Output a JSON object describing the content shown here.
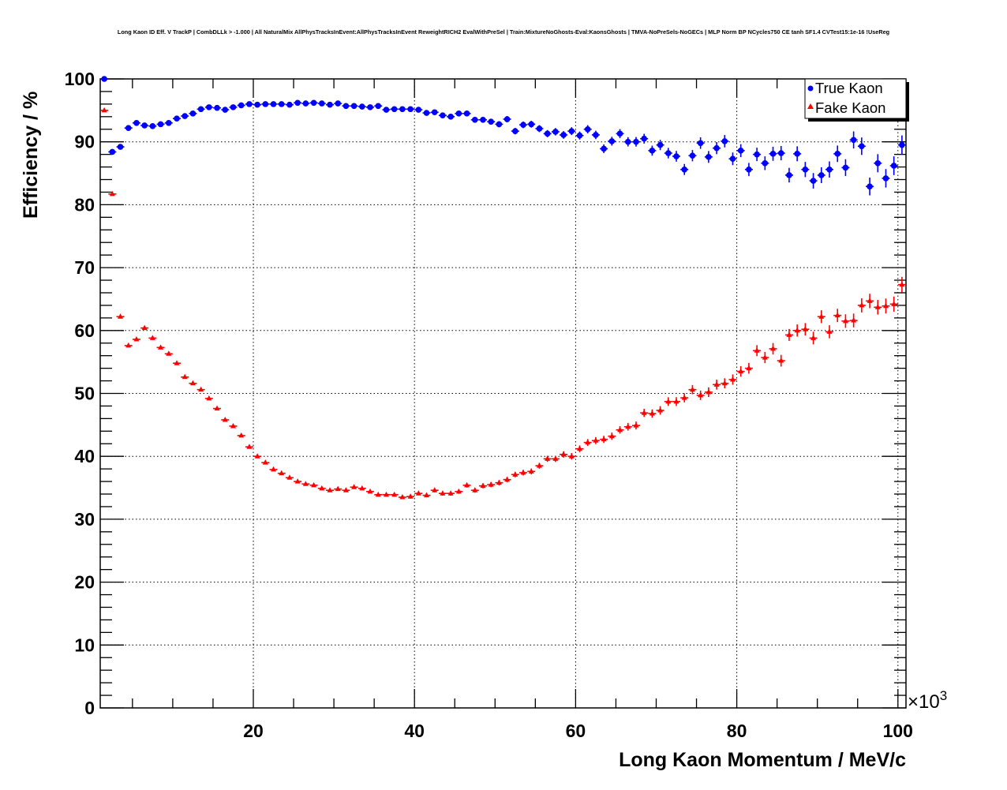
{
  "chart_data": {
    "type": "scatter",
    "title": "Long Kaon ID Eff. V TrackP | CombDLLk > -1.000 | All NaturalMix AllPhysTracksInEvent:AllPhysTracksInEvent ReweightRICH2 EvalWithPreSel | Train:MixtureNoGhosts-Eval:KaonsGhosts | TMVA-NoPreSels-NoGECs | MLP Norm BP NCycles750 CE tanh SF1.4 CVTest15:1e-16 !UseReg",
    "xlabel": "Long Kaon Momentum / MeV/c",
    "ylabel": "Efficiency / %",
    "x_multiplier": "×10",
    "x_multiplier_exp": "3",
    "xlim": [
      1,
      101
    ],
    "ylim": [
      0,
      100
    ],
    "xticks": [
      "20",
      "40",
      "60",
      "80",
      "100"
    ],
    "yticks": [
      "0",
      "10",
      "20",
      "30",
      "40",
      "50",
      "60",
      "70",
      "80",
      "90",
      "100"
    ],
    "grid": true,
    "legend_position": "top-right",
    "x_start": 1.5,
    "x_step": 1,
    "series": [
      {
        "name": "True Kaon",
        "color": "#0000ff",
        "marker": "circle",
        "values": [
          100,
          88.4,
          89.2,
          92.2,
          93.0,
          92.6,
          92.5,
          92.8,
          93.0,
          93.7,
          94.1,
          94.5,
          95.2,
          95.5,
          95.4,
          95.1,
          95.5,
          95.8,
          96.0,
          95.9,
          96.0,
          96.0,
          96.0,
          95.9,
          96.2,
          96.1,
          96.2,
          96.1,
          95.9,
          96.1,
          95.7,
          95.7,
          95.6,
          95.5,
          95.7,
          95.1,
          95.2,
          95.2,
          95.2,
          95.1,
          94.6,
          94.7,
          94.2,
          94.0,
          94.5,
          94.5,
          93.5,
          93.5,
          93.2,
          92.8,
          93.6,
          91.7,
          92.7,
          92.8,
          92.1,
          91.3,
          91.6,
          91.1,
          91.7,
          91.0,
          92.0,
          91.1,
          88.9,
          90.1,
          91.3,
          90.0,
          90.0,
          90.5,
          88.6,
          89.5,
          88.2,
          87.7,
          85.6,
          87.8,
          89.8,
          87.6,
          89.0,
          90.1,
          87.3,
          88.6,
          85.6,
          88.0,
          86.6,
          88.1,
          88.2,
          84.7,
          88.1,
          85.6,
          83.8,
          84.7,
          85.6,
          88.1,
          85.9,
          90.3,
          89.3,
          82.9,
          86.6,
          84.2,
          86.2,
          89.5
        ]
      },
      {
        "name": "Fake Kaon",
        "color": "#ff0000",
        "marker": "triangle",
        "values": [
          95.0,
          81.7,
          62.2,
          57.6,
          58.6,
          60.4,
          58.8,
          57.3,
          56.3,
          54.8,
          52.6,
          51.6,
          50.6,
          49.2,
          47.6,
          45.8,
          44.8,
          43.3,
          41.5,
          40.0,
          39.0,
          37.9,
          37.3,
          36.6,
          36.0,
          35.6,
          35.4,
          34.9,
          34.6,
          34.8,
          34.6,
          35.1,
          34.9,
          34.4,
          33.9,
          33.9,
          33.9,
          33.5,
          33.6,
          34.1,
          33.8,
          34.6,
          34.1,
          34.1,
          34.4,
          35.4,
          34.6,
          35.3,
          35.5,
          35.8,
          36.3,
          37.1,
          37.4,
          37.6,
          38.5,
          39.6,
          39.6,
          40.3,
          40.0,
          41.2,
          42.2,
          42.5,
          42.7,
          43.2,
          44.2,
          44.7,
          44.9,
          46.9,
          46.8,
          47.3,
          48.7,
          48.7,
          49.3,
          50.6,
          49.7,
          50.2,
          51.4,
          51.6,
          52.2,
          53.5,
          54.0,
          56.8,
          55.7,
          57.1,
          55.2,
          59.3,
          60.0,
          60.2,
          58.8,
          62.2,
          59.8,
          62.4,
          61.5,
          61.6,
          64.0,
          64.7,
          63.7,
          63.9,
          64.2,
          67.3
        ]
      }
    ]
  }
}
